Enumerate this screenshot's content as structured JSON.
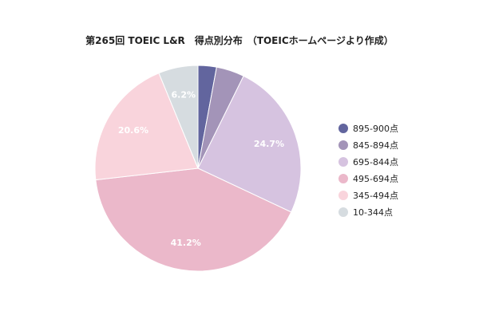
{
  "chart_data": {
    "type": "pie",
    "title": "第265回 TOEIC L&R　得点別分布　（TOEICホームページより作成）",
    "legend_position": "right",
    "slices": [
      {
        "label": "895-900点",
        "value": 2.9,
        "display": "",
        "color": "#62659e"
      },
      {
        "label": "845-894点",
        "value": 4.4,
        "display": "",
        "color": "#a394b8"
      },
      {
        "label": "695-844点",
        "value": 24.7,
        "display": "24.7%",
        "color": "#d6c3e0"
      },
      {
        "label": "495-694点",
        "value": 41.2,
        "display": "41.2%",
        "color": "#ebb8ca"
      },
      {
        "label": "345-494点",
        "value": 20.6,
        "display": "20.6%",
        "color": "#f9d4dc"
      },
      {
        "label": "10-344点",
        "value": 6.2,
        "display": "6.2%",
        "color": "#d6dce0"
      }
    ]
  }
}
